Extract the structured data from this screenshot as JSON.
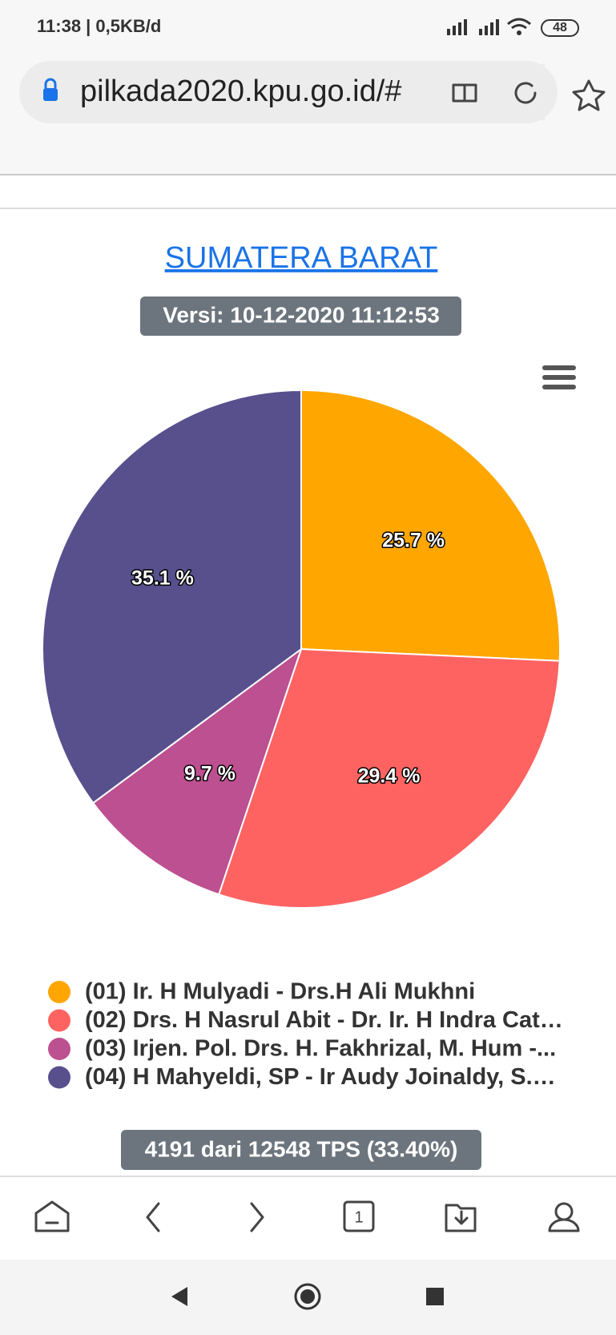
{
  "status_bar": {
    "time": "11:38 | 0,5KB/d",
    "battery": "48"
  },
  "browser": {
    "url": "pilkada2020.kpu.go.id/#"
  },
  "header": {
    "title": "SUMATERA BARAT",
    "version": "Versi: 10-12-2020 11:12:53"
  },
  "chart_data": {
    "type": "pie",
    "categories": [
      "(01) Ir. H Mulyadi - Drs.H Ali Mukhni",
      "(02) Drs. H Nasrul Abit - Dr. Ir. H Indra Cat…",
      "(03) Irjen. Pol. Drs. H. Fakhrizal, M. Hum -...",
      "(04) H Mahyeldi, SP - Ir Audy Joinaldy, S.…"
    ],
    "values": [
      25.7,
      29.4,
      9.7,
      35.1
    ],
    "value_labels": [
      "25.7 %",
      "29.4 %",
      "9.7 %",
      "35.1 %"
    ],
    "colors": [
      "#ffa600",
      "#ff6361",
      "#bc5090",
      "#58508d"
    ]
  },
  "footer": {
    "progress": "4191 dari 12548 TPS (33.40%)"
  },
  "tabs": {
    "count": "1"
  }
}
